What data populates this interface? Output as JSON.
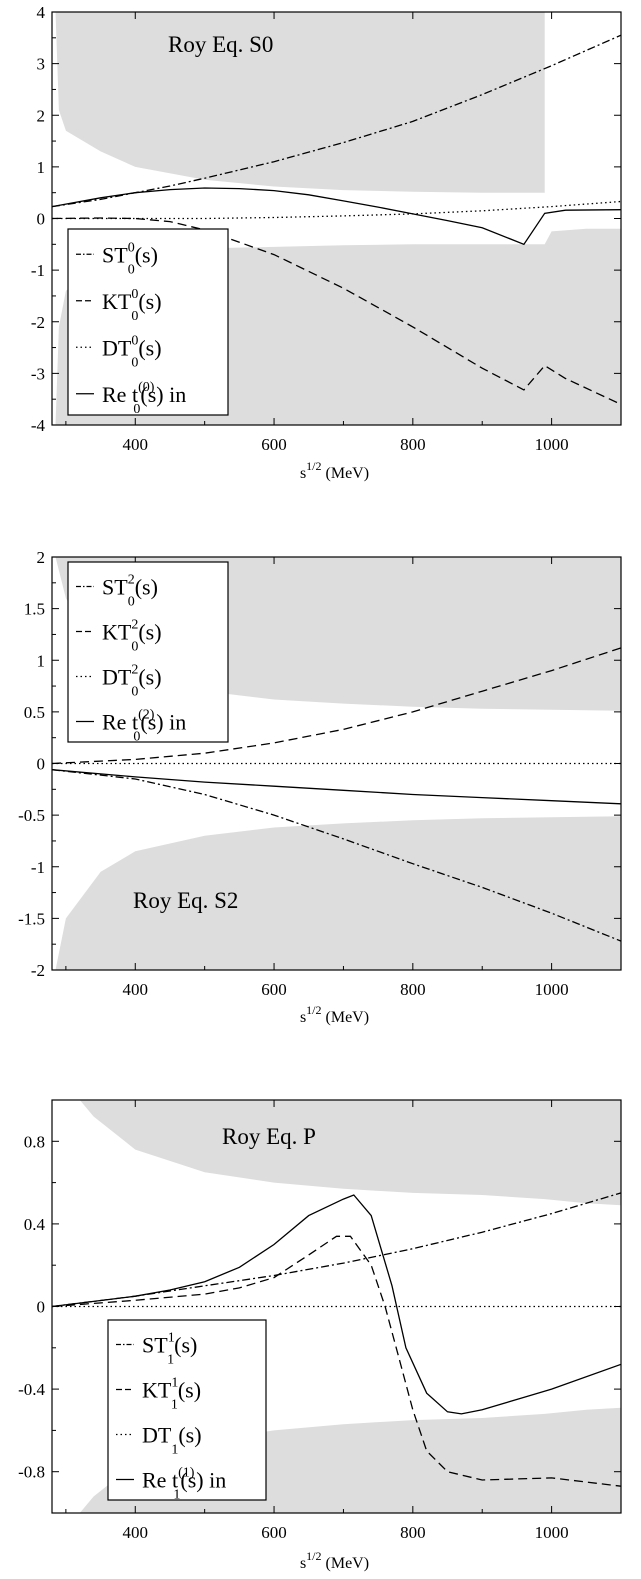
{
  "chart_data": [
    {
      "type": "line",
      "title": "Roy Eq. S0",
      "xlabel": "s^{1/2} (MeV)",
      "xlabel_base": "s",
      "xlabel_sup": "1/2",
      "xlabel_unit": "(MeV)",
      "xlim": [
        280,
        1100
      ],
      "ylim": [
        -4,
        4
      ],
      "x_ticks": [
        400,
        600,
        800,
        1000
      ],
      "y_ticks": [
        -4,
        -3,
        -2,
        -1,
        0,
        1,
        2,
        3,
        4
      ],
      "y_tick_labels": [
        "-4",
        "-3",
        "-2",
        "-1",
        "0",
        "1",
        "2",
        "3",
        "4"
      ],
      "grid": false,
      "legend_position": "bottom-left",
      "band_color": "#dddddd",
      "upper_band": [
        [
          285,
          4
        ],
        [
          290,
          2.1
        ],
        [
          300,
          1.7
        ],
        [
          350,
          1.3
        ],
        [
          400,
          1.0
        ],
        [
          500,
          0.75
        ],
        [
          600,
          0.62
        ],
        [
          700,
          0.55
        ],
        [
          800,
          0.52
        ],
        [
          900,
          0.5
        ],
        [
          990,
          0.5
        ],
        [
          990,
          4
        ]
      ],
      "lower_band": [
        [
          285,
          -4
        ],
        [
          290,
          -2.1
        ],
        [
          300,
          -1.4
        ],
        [
          350,
          -0.9
        ],
        [
          400,
          -0.7
        ],
        [
          500,
          -0.58
        ],
        [
          600,
          -0.55
        ],
        [
          700,
          -0.52
        ],
        [
          800,
          -0.5
        ],
        [
          960,
          -0.5
        ],
        [
          990,
          -0.5
        ],
        [
          1000,
          -0.25
        ],
        [
          1050,
          -0.2
        ],
        [
          1100,
          -0.2
        ],
        [
          1100,
          -4
        ]
      ],
      "series": [
        {
          "legend_base": "ST",
          "legend_sup": "0",
          "legend_sub": "0",
          "legend_rest": "(s)",
          "dash": "8,3,2,3",
          "x": [
            280,
            350,
            400,
            450,
            500,
            600,
            700,
            800,
            900,
            1000,
            1100
          ],
          "y": [
            0.23,
            0.37,
            0.5,
            0.63,
            0.78,
            1.1,
            1.47,
            1.88,
            2.4,
            2.96,
            3.55
          ]
        },
        {
          "legend_base": "KT",
          "legend_sup": "0",
          "legend_sub": "0",
          "legend_rest": "(s)",
          "dash": "9,5",
          "x": [
            280,
            350,
            400,
            450,
            500,
            600,
            700,
            800,
            900,
            960,
            990,
            1020,
            1100
          ],
          "y": [
            0.0,
            0.01,
            0.0,
            -0.06,
            -0.22,
            -0.7,
            -1.35,
            -2.1,
            -2.9,
            -3.32,
            -2.85,
            -3.1,
            -3.6
          ]
        },
        {
          "legend_base": "DT",
          "legend_sup": "0",
          "legend_sub": "0",
          "legend_rest": "(s)",
          "dash": "1.5,3",
          "x": [
            280,
            400,
            500,
            600,
            700,
            800,
            900,
            1000,
            1100
          ],
          "y": [
            0.0,
            0.0,
            0.0,
            0.02,
            0.05,
            0.09,
            0.15,
            0.23,
            0.33
          ]
        },
        {
          "legend_base": "Re t",
          "legend_sup": "(0)",
          "legend_sub": "0",
          "legend_rest": "(s) in",
          "dash": "",
          "x": [
            280,
            350,
            400,
            450,
            500,
            550,
            600,
            650,
            700,
            750,
            800,
            850,
            900,
            960,
            990,
            1020,
            1100
          ],
          "y": [
            0.23,
            0.4,
            0.5,
            0.56,
            0.59,
            0.58,
            0.54,
            0.46,
            0.34,
            0.22,
            0.09,
            -0.04,
            -0.18,
            -0.5,
            0.1,
            0.16,
            0.17
          ]
        }
      ]
    },
    {
      "type": "line",
      "title": "Roy Eq. S2",
      "xlabel": "s^{1/2} (MeV)",
      "xlabel_base": "s",
      "xlabel_sup": "1/2",
      "xlabel_unit": "(MeV)",
      "xlim": [
        280,
        1100
      ],
      "ylim": [
        -2,
        2
      ],
      "x_ticks": [
        400,
        600,
        800,
        1000
      ],
      "y_ticks": [
        -2,
        -1.5,
        -1,
        -0.5,
        0,
        0.5,
        1,
        1.5,
        2
      ],
      "y_tick_labels": [
        "-2",
        "-1.5",
        "-1",
        "-0.5",
        "0",
        "0.5",
        "1",
        "1.5",
        "2"
      ],
      "grid": false,
      "legend_position": "top-left",
      "band_color": "#dddddd",
      "upper_band": [
        [
          285,
          2
        ],
        [
          300,
          1.6
        ],
        [
          350,
          1.05
        ],
        [
          400,
          0.85
        ],
        [
          500,
          0.7
        ],
        [
          600,
          0.62
        ],
        [
          700,
          0.58
        ],
        [
          800,
          0.55
        ],
        [
          900,
          0.53
        ],
        [
          1000,
          0.52
        ],
        [
          1100,
          0.51
        ],
        [
          1100,
          2
        ]
      ],
      "lower_band": [
        [
          285,
          -2
        ],
        [
          300,
          -1.5
        ],
        [
          350,
          -1.05
        ],
        [
          400,
          -0.85
        ],
        [
          500,
          -0.7
        ],
        [
          600,
          -0.62
        ],
        [
          700,
          -0.58
        ],
        [
          800,
          -0.55
        ],
        [
          900,
          -0.53
        ],
        [
          1000,
          -0.52
        ],
        [
          1100,
          -0.51
        ],
        [
          1100,
          -2
        ]
      ],
      "series": [
        {
          "legend_base": "ST",
          "legend_sup": "2",
          "legend_sub": "0",
          "legend_rest": "(s)",
          "dash": "8,3,2,3",
          "x": [
            280,
            400,
            500,
            600,
            700,
            800,
            900,
            1000,
            1100
          ],
          "y": [
            -0.06,
            -0.15,
            -0.3,
            -0.5,
            -0.73,
            -0.97,
            -1.2,
            -1.45,
            -1.72
          ]
        },
        {
          "legend_base": "KT",
          "legend_sup": "2",
          "legend_sub": "0",
          "legend_rest": "(s)",
          "dash": "9,5",
          "x": [
            280,
            400,
            500,
            600,
            700,
            800,
            900,
            1000,
            1100
          ],
          "y": [
            0.0,
            0.04,
            0.1,
            0.2,
            0.33,
            0.5,
            0.7,
            0.9,
            1.12
          ]
        },
        {
          "legend_base": "DT",
          "legend_sup": "2",
          "legend_sub": "0",
          "legend_rest": "(s)",
          "dash": "1.5,3",
          "x": [
            280,
            1100
          ],
          "y": [
            0.0,
            0.0
          ]
        },
        {
          "legend_base": "Re t",
          "legend_sup": "(2)",
          "legend_sub": "0",
          "legend_rest": "(s) in",
          "dash": "",
          "x": [
            280,
            400,
            500,
            600,
            700,
            800,
            900,
            1000,
            1100
          ],
          "y": [
            -0.06,
            -0.13,
            -0.18,
            -0.22,
            -0.26,
            -0.3,
            -0.33,
            -0.36,
            -0.39
          ]
        }
      ]
    },
    {
      "type": "line",
      "title": "Roy Eq. P",
      "xlabel": "s^{1/2} (MeV)",
      "xlabel_base": "s",
      "xlabel_sup": "1/2",
      "xlabel_unit": "(MeV)",
      "xlim": [
        280,
        1100
      ],
      "ylim": [
        -1,
        1
      ],
      "x_ticks": [
        400,
        600,
        800,
        1000
      ],
      "y_ticks": [
        -0.8,
        -0.4,
        0,
        0.4,
        0.8
      ],
      "y_tick_labels": [
        "-0.8",
        "-0.4",
        "0",
        "0.4",
        "0.8"
      ],
      "grid": false,
      "legend_position": "bottom-left",
      "band_color": "#dddddd",
      "upper_band": [
        [
          320,
          1
        ],
        [
          340,
          0.92
        ],
        [
          400,
          0.76
        ],
        [
          500,
          0.65
        ],
        [
          600,
          0.6
        ],
        [
          700,
          0.57
        ],
        [
          800,
          0.55
        ],
        [
          900,
          0.54
        ],
        [
          990,
          0.52
        ],
        [
          1050,
          0.5
        ],
        [
          1100,
          0.49
        ],
        [
          1100,
          1
        ]
      ],
      "lower_band": [
        [
          320,
          -1
        ],
        [
          340,
          -0.92
        ],
        [
          400,
          -0.76
        ],
        [
          500,
          -0.65
        ],
        [
          600,
          -0.6
        ],
        [
          700,
          -0.57
        ],
        [
          800,
          -0.55
        ],
        [
          900,
          -0.54
        ],
        [
          990,
          -0.52
        ],
        [
          1050,
          -0.5
        ],
        [
          1100,
          -0.49
        ],
        [
          1100,
          -1
        ]
      ],
      "series": [
        {
          "legend_base": "ST",
          "legend_sup": "1",
          "legend_sub": "1",
          "legend_rest": "(s)",
          "dash": "8,3,2,3",
          "x": [
            280,
            400,
            500,
            600,
            700,
            800,
            900,
            1000,
            1100
          ],
          "y": [
            0.0,
            0.05,
            0.1,
            0.15,
            0.21,
            0.28,
            0.36,
            0.45,
            0.55
          ]
        },
        {
          "legend_base": "KT",
          "legend_sup": "1",
          "legend_sub": "1",
          "legend_rest": "(s)",
          "dash": "9,5",
          "x": [
            280,
            400,
            500,
            550,
            600,
            650,
            690,
            710,
            740,
            760,
            780,
            800,
            820,
            850,
            900,
            1000,
            1100
          ],
          "y": [
            0.0,
            0.03,
            0.06,
            0.09,
            0.14,
            0.25,
            0.34,
            0.34,
            0.2,
            0.0,
            -0.25,
            -0.5,
            -0.7,
            -0.8,
            -0.84,
            -0.83,
            -0.87
          ]
        },
        {
          "legend_base": "DT",
          "legend_sup": "",
          "legend_sub": "1",
          "legend_rest": "(s)",
          "dash": "1.5,3",
          "x": [
            280,
            1100
          ],
          "y": [
            0.0,
            0.0
          ]
        },
        {
          "legend_base": "Re t",
          "legend_sup": "(1)",
          "legend_sub": "1",
          "legend_rest": "(s) in",
          "dash": "",
          "x": [
            280,
            400,
            450,
            500,
            550,
            600,
            650,
            700,
            715,
            740,
            770,
            790,
            820,
            850,
            870,
            900,
            1000,
            1100
          ],
          "y": [
            0.0,
            0.05,
            0.08,
            0.12,
            0.19,
            0.3,
            0.44,
            0.52,
            0.54,
            0.44,
            0.1,
            -0.2,
            -0.42,
            -0.51,
            -0.52,
            -0.5,
            -0.4,
            -0.28
          ]
        }
      ]
    }
  ]
}
